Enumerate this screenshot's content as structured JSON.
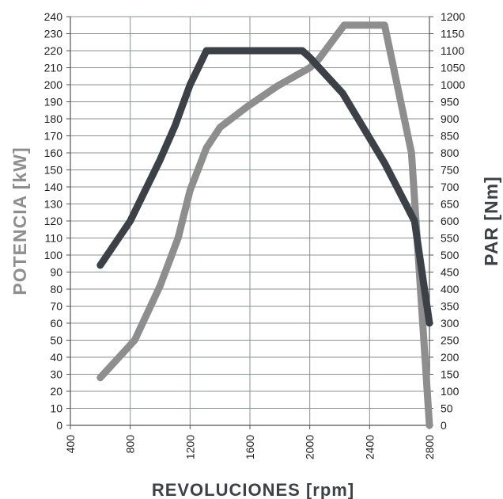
{
  "chart_data": {
    "type": "line",
    "xlabel": "REVOLUCIONES [rpm]",
    "ylabel_left": "POTENCIA [kW]",
    "ylabel_right": "PAR [Nm]",
    "xlim": [
      400,
      2800
    ],
    "xticks": [
      400,
      800,
      1200,
      1600,
      2000,
      2400,
      2800
    ],
    "ylim_left": [
      0,
      240
    ],
    "yticks_left": [
      0,
      10,
      20,
      30,
      40,
      50,
      60,
      70,
      80,
      90,
      100,
      110,
      120,
      130,
      140,
      150,
      160,
      170,
      180,
      190,
      200,
      210,
      220,
      230,
      240
    ],
    "ylim_right": [
      0,
      1200
    ],
    "yticks_right": [
      0,
      50,
      100,
      150,
      200,
      250,
      300,
      350,
      400,
      450,
      500,
      550,
      600,
      650,
      700,
      750,
      800,
      850,
      900,
      950,
      1000,
      1050,
      1100,
      1150,
      1200
    ],
    "grid": true,
    "series": [
      {
        "axis": "left",
        "color": "#8e8e8e",
        "x": [
          600,
          830,
          1000,
          1120,
          1200,
          1310,
          1400,
          1580,
          1780,
          2000,
          2060,
          2230,
          2500,
          2680,
          2800
        ],
        "y": [
          28,
          50,
          82,
          110,
          138,
          163,
          175,
          187,
          199,
          210,
          215,
          235,
          235,
          160,
          0
        ]
      },
      {
        "axis": "right",
        "color": "#3c4147",
        "x": [
          600,
          800,
          1000,
          1100,
          1200,
          1310,
          1500,
          1700,
          1950,
          2000,
          2220,
          2500,
          2700,
          2800
        ],
        "y": [
          470,
          600,
          780,
          880,
          1000,
          1100,
          1100,
          1100,
          1100,
          1080,
          975,
          770,
          600,
          300
        ]
      }
    ]
  }
}
